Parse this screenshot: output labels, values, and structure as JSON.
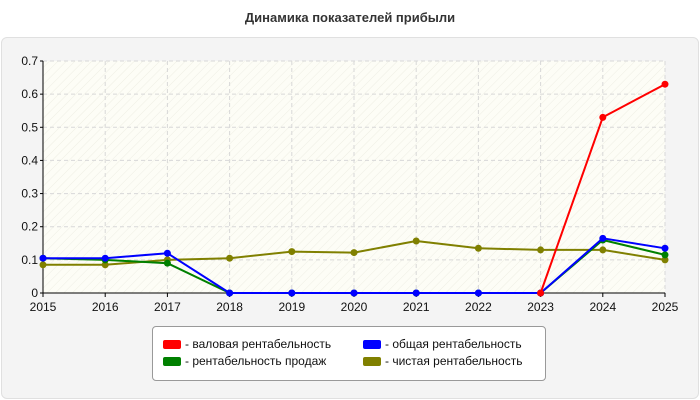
{
  "chart_data": {
    "type": "line",
    "title": "Динамика показателей прибыли",
    "x": [
      "2015",
      "2016",
      "2017",
      "2018",
      "2019",
      "2020",
      "2021",
      "2022",
      "2023",
      "2024",
      "2025"
    ],
    "ylim": [
      0,
      0.7
    ],
    "yticks": [
      "0",
      "0.1",
      "0.2",
      "0.3",
      "0.4",
      "0.5",
      "0.6",
      "0.7"
    ],
    "grid": true,
    "legend_position": "bottom-center",
    "series": [
      {
        "name": "- валовая рентабельность",
        "color": "#ff0000",
        "values": [
          null,
          null,
          null,
          null,
          null,
          null,
          null,
          null,
          0,
          0.53,
          0.63
        ]
      },
      {
        "name": "- общая рентабельность",
        "color": "#0000ff",
        "values": [
          0.105,
          0.105,
          0.12,
          0,
          0,
          0,
          0,
          0,
          0,
          0.165,
          0.135
        ]
      },
      {
        "name": "- рентабельность продаж",
        "color": "#008000",
        "values": [
          0.105,
          0.1,
          0.09,
          0,
          0,
          0,
          0,
          0,
          0,
          0.16,
          0.115
        ]
      },
      {
        "name": "- чистая рентабельность",
        "color": "#808000",
        "values": [
          0.085,
          0.085,
          0.1,
          0.105,
          0.125,
          0.122,
          0.157,
          0.135,
          0.13,
          0.13,
          0.1
        ]
      }
    ]
  }
}
